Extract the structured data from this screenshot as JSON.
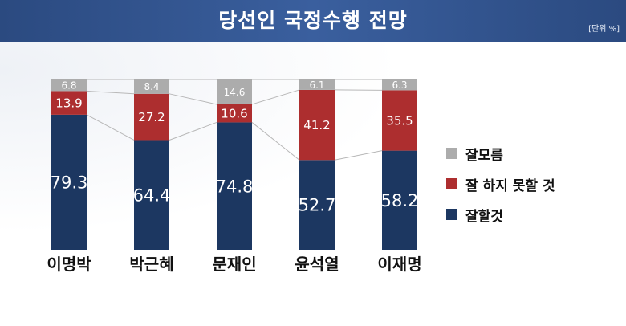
{
  "header": {
    "title": "당선인 국정수행 전망",
    "unit": "[단위 %]"
  },
  "colors": {
    "good": "#1c3761",
    "bad": "#ad2e2f",
    "unknown": "#acacac",
    "connector": "#b8b8b8"
  },
  "legend": [
    {
      "name": "잘모름",
      "color": "#acacac"
    },
    {
      "name": "잘 하지 못할 것",
      "color": "#ad2e2f"
    },
    {
      "name": "잘할것",
      "color": "#1c3761"
    }
  ],
  "chart_data": {
    "type": "bar",
    "stacked": true,
    "categories": [
      "이명박",
      "박근혜",
      "문재인",
      "윤석열",
      "이재명"
    ],
    "series": [
      {
        "name": "잘할것",
        "values": [
          79.3,
          64.4,
          74.8,
          52.7,
          58.2
        ]
      },
      {
        "name": "잘 하지 못할 것",
        "values": [
          13.9,
          27.2,
          10.6,
          41.2,
          35.5
        ]
      },
      {
        "name": "잘모름",
        "values": [
          6.8,
          8.4,
          14.6,
          6.1,
          6.3
        ]
      }
    ],
    "ylim": [
      0,
      100
    ],
    "legend_position": "right",
    "grid": false
  }
}
